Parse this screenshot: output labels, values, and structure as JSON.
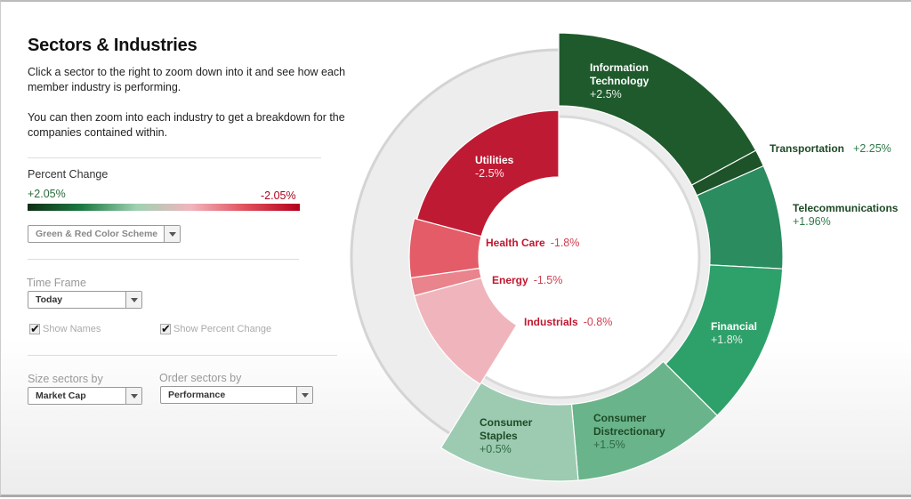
{
  "title": "Sectors & Industries",
  "intro": [
    "Click a sector to the right to zoom down into it and see how each member industry is performing.",
    "You can then zoom into each industry to get a breakdown for the companies contained within."
  ],
  "legend": {
    "label": "Percent Change",
    "max": "+2.05%",
    "min": "-2.05%",
    "scheme": "Green & Red Color Scheme",
    "colors": [
      "#0f2f16",
      "#1d7a43",
      "#9fd1b2",
      "#f1b5bd",
      "#e0505c",
      "#b3001e"
    ]
  },
  "time_frame": {
    "label": "Time Frame",
    "value": "Today"
  },
  "show_names": {
    "label": "Show Names",
    "checked": true
  },
  "show_percent": {
    "label": "Show Percent Change",
    "checked": true
  },
  "size_by": {
    "label": "Size sectors by",
    "value": "Market Cap"
  },
  "order_by": {
    "label": "Order sectors by",
    "value": "Performance"
  },
  "sectors": [
    {
      "name": "Information Technology",
      "change": "+2.5%",
      "color": "#1f5a2c"
    },
    {
      "name": "Transportation",
      "change": "+2.25%",
      "color": "#1e5229"
    },
    {
      "name": "Telecommunications",
      "change": "+1.96%",
      "color": "#2a8c5f"
    },
    {
      "name": "Financial",
      "change": "+1.8%",
      "color": "#2ea06a"
    },
    {
      "name": "Consumer Distrectionary",
      "change": "+1.5%",
      "color": "#6ab48b"
    },
    {
      "name": "Consumer Staples",
      "change": "+0.5%",
      "color": "#9ccbb1"
    },
    {
      "name": "Industrials",
      "change": "-0.8%",
      "color": "#f0b5bc"
    },
    {
      "name": "Energy",
      "change": "-1.5%",
      "color": "#e9838c"
    },
    {
      "name": "Health Care",
      "change": "-1.8%",
      "color": "#e35c68"
    },
    {
      "name": "Utilities",
      "change": "-2.5%",
      "color": "#bf1a33"
    }
  ]
}
